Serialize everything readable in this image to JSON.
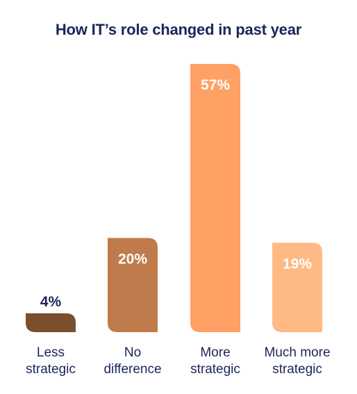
{
  "chart_data": {
    "type": "bar",
    "title": "How IT’s role changed in past year",
    "categories": [
      [
        "Less",
        "strategic"
      ],
      [
        "No",
        "difference"
      ],
      [
        "More",
        "strategic"
      ],
      [
        "Much more",
        "strategic"
      ]
    ],
    "values": [
      4,
      20,
      57,
      19
    ],
    "data_labels": [
      "4%",
      "20%",
      "57%",
      "19%"
    ],
    "unit": "%",
    "ylim": [
      0,
      57
    ],
    "grid": false,
    "legend": "none",
    "colors": [
      "#7a4f2e",
      "#bf7b4b",
      "#ffa064",
      "#ffb985"
    ],
    "label_colors": [
      "#1c2559",
      "#ffffff",
      "#ffffff",
      "#ffffff"
    ],
    "category_label_color": "#1c2559"
  }
}
